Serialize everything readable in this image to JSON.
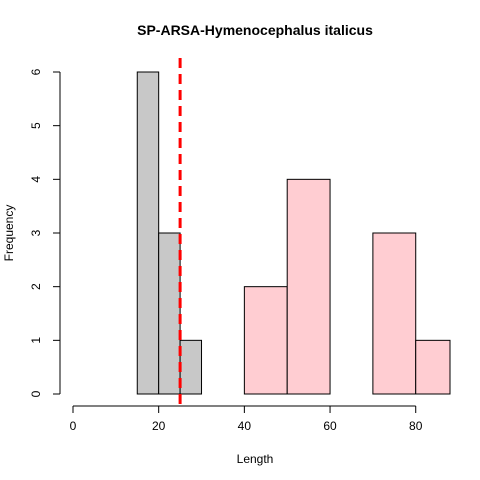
{
  "chart_data": {
    "type": "bar",
    "title": "SP-ARSA-Hymenocephalus italicus",
    "xlabel": "Length",
    "ylabel": "Frequency",
    "xlim": [
      0,
      88
    ],
    "ylim": [
      0,
      6
    ],
    "x_ticks": [
      0,
      20,
      40,
      60,
      80
    ],
    "y_ticks": [
      0,
      1,
      2,
      3,
      4,
      5,
      6
    ],
    "grid": false,
    "colors": {
      "gray": "#c8c8c8",
      "pink": "#ffcdd2",
      "cutoff": "#ff0000"
    },
    "bins": [
      {
        "start": 15,
        "end": 20,
        "count": 6,
        "group": "gray"
      },
      {
        "start": 20,
        "end": 25,
        "count": 3,
        "group": "gray"
      },
      {
        "start": 25,
        "end": 30,
        "count": 1,
        "group": "gray"
      },
      {
        "start": 40,
        "end": 50,
        "count": 2,
        "group": "pink"
      },
      {
        "start": 50,
        "end": 60,
        "count": 4,
        "group": "pink"
      },
      {
        "start": 60,
        "end": 70,
        "count": 0,
        "group": "pink"
      },
      {
        "start": 70,
        "end": 80,
        "count": 3,
        "group": "pink"
      },
      {
        "start": 80,
        "end": 90,
        "count": 1,
        "group": "pink"
      }
    ],
    "cutoff_x": 25
  }
}
